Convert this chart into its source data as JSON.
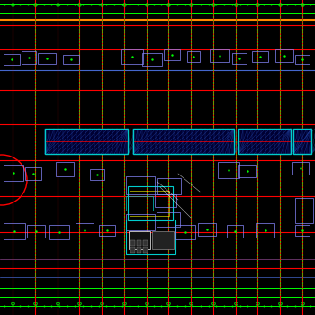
{
  "bg_color": "#000000",
  "figsize": [
    3.5,
    3.5
  ],
  "dpi": 100,
  "grid_color_red": "#ff0000",
  "grid_color_green": "#00ff00",
  "grid_color_orange": "#ff8800",
  "cyan_color": "#00cccc",
  "light_blue": "#6688ff",
  "plot_xlim": [
    0,
    350
  ],
  "plot_ylim": [
    0,
    350
  ]
}
